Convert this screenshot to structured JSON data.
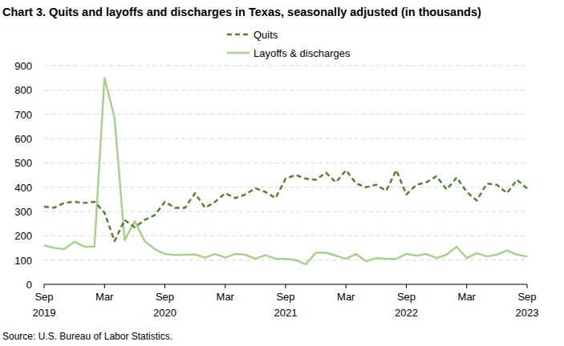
{
  "chart_data": {
    "type": "line",
    "title": "Chart 3. Quits and layoffs and discharges in Texas, seasonally adjusted (in thousands)",
    "source": "Source: U.S. Bureau of Labor Statistics.",
    "categories": [
      "Sep 2019",
      null,
      null,
      null,
      null,
      null,
      "Mar",
      null,
      null,
      null,
      null,
      null,
      "Sep 2020",
      null,
      null,
      null,
      null,
      null,
      "Mar",
      null,
      null,
      null,
      null,
      null,
      "Sep 2021",
      null,
      null,
      null,
      null,
      null,
      "Mar",
      null,
      null,
      null,
      null,
      null,
      "Sep 2022",
      null,
      null,
      null,
      null,
      null,
      "Mar",
      null,
      null,
      null,
      null,
      null,
      "Sep 2023"
    ],
    "series": [
      {
        "name": "Quits",
        "color": "#548235",
        "line_style": "dashed",
        "values": [
          320,
          315,
          335,
          340,
          335,
          340,
          295,
          178,
          265,
          235,
          265,
          285,
          340,
          315,
          315,
          375,
          315,
          340,
          375,
          355,
          370,
          395,
          380,
          355,
          435,
          450,
          435,
          430,
          460,
          420,
          470,
          415,
          400,
          410,
          385,
          470,
          370,
          410,
          420,
          445,
          390,
          440,
          380,
          345,
          415,
          410,
          375,
          430,
          395
        ]
      },
      {
        "name": "Layoffs & discharges",
        "color": "#a9d18e",
        "line_style": "solid",
        "values": [
          160,
          150,
          145,
          175,
          155,
          155,
          850,
          685,
          182,
          260,
          178,
          145,
          125,
          120,
          122,
          123,
          110,
          125,
          110,
          125,
          122,
          105,
          120,
          105,
          105,
          100,
          82,
          130,
          130,
          118,
          105,
          125,
          95,
          108,
          105,
          105,
          125,
          118,
          125,
          108,
          122,
          155,
          108,
          128,
          115,
          122,
          140,
          122,
          115
        ]
      }
    ],
    "ylim": [
      0,
      900
    ],
    "yticks": [
      0,
      100,
      200,
      300,
      400,
      500,
      600,
      700,
      800,
      900
    ],
    "grid": true,
    "legend": "top"
  }
}
